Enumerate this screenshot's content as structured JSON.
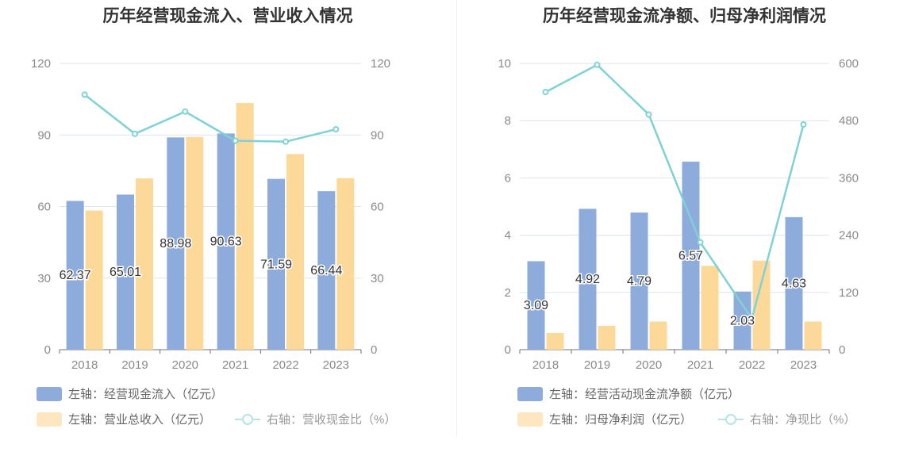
{
  "colors": {
    "bar1": "#8eacdb",
    "bar2": "#fdd999",
    "line": "#7ed2d6",
    "grid": "#dde3ee",
    "axis_text": "#8a8a8a",
    "legend_text": "#666666",
    "legend_muted": "#9a9a9a",
    "title": "#333333"
  },
  "chart_data": [
    {
      "type": "bar",
      "title": "历年经营现金流入、营业收入情况",
      "categories": [
        "2018",
        "2019",
        "2020",
        "2021",
        "2022",
        "2023"
      ],
      "left_axis": {
        "ylim": [
          0,
          120
        ],
        "ticks": [
          "0",
          "30",
          "60",
          "90",
          "120"
        ]
      },
      "right_axis": {
        "ylim": [
          0,
          120
        ],
        "ticks": [
          "0",
          "30",
          "60",
          "90",
          "120"
        ]
      },
      "grid": true,
      "legend_position": "bottom-left",
      "series": [
        {
          "name": "左轴：经营现金流入（亿元）",
          "kind": "bar",
          "axis": "left",
          "values": [
            62.37,
            65.01,
            88.98,
            90.63,
            71.59,
            66.44
          ],
          "labels": [
            "62.37",
            "65.01",
            "88.98",
            "90.63",
            "71.59",
            "66.44"
          ]
        },
        {
          "name": "左轴：营业总收入（亿元）",
          "kind": "bar",
          "axis": "left",
          "values": [
            58.3,
            71.8,
            89.2,
            103.4,
            82.0,
            71.9
          ]
        },
        {
          "name": "右轴：营收现金比（%）",
          "kind": "line",
          "axis": "right",
          "values": [
            106.9,
            90.5,
            99.8,
            87.6,
            87.2,
            92.4
          ]
        }
      ]
    },
    {
      "type": "bar",
      "title": "历年经营现金流净额、归母净利润情况",
      "categories": [
        "2018",
        "2019",
        "2020",
        "2021",
        "2022",
        "2023"
      ],
      "left_axis": {
        "ylim": [
          0,
          10
        ],
        "ticks": [
          "0",
          "2",
          "4",
          "6",
          "8",
          "10"
        ]
      },
      "right_axis": {
        "ylim": [
          0,
          600
        ],
        "ticks": [
          "0",
          "120",
          "240",
          "360",
          "480",
          "600"
        ]
      },
      "grid": true,
      "legend_position": "bottom-left",
      "series": [
        {
          "name": "左轴：经营活动现金流净额（亿元）",
          "kind": "bar",
          "axis": "left",
          "values": [
            3.09,
            4.92,
            4.79,
            6.57,
            2.03,
            4.63
          ],
          "labels": [
            "3.09",
            "4.92",
            "4.79",
            "6.57",
            "2.03",
            "4.63"
          ]
        },
        {
          "name": "左轴：归母净利润（亿元）",
          "kind": "bar",
          "axis": "left",
          "values": [
            0.58,
            0.83,
            0.98,
            2.93,
            3.11,
            0.98
          ]
        },
        {
          "name": "右轴：净现比（%）",
          "kind": "line",
          "axis": "right",
          "values": [
            540,
            597,
            493,
            225,
            65,
            472
          ]
        }
      ]
    }
  ]
}
